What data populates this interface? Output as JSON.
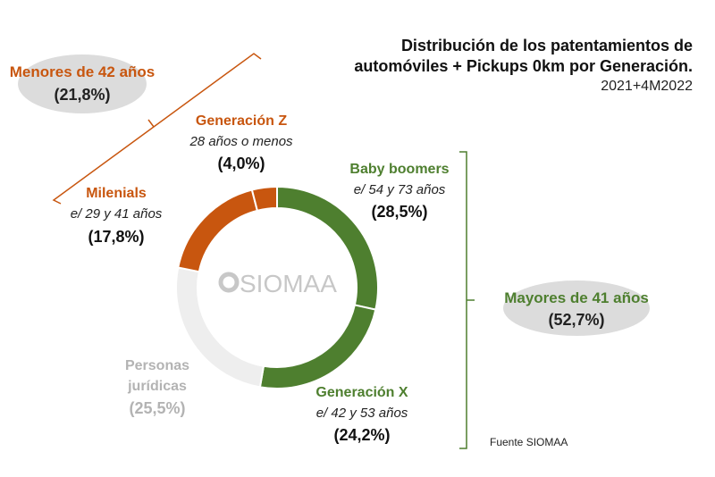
{
  "chart_data": {
    "type": "pie",
    "variant": "donut",
    "title": "Distribución de los patentamientos de automóviles + Pickups 0km por Generación.",
    "subtitle": "2021+4M2022",
    "slices": [
      {
        "name": "Baby boomers",
        "range": "e/ 54 y 73 años",
        "value": 28.5,
        "label": "(28,5%)",
        "color": "#4e7f2f"
      },
      {
        "name": "Generación X",
        "range": "e/ 42 y 53 años",
        "value": 24.2,
        "label": "(24,2%)",
        "color": "#4e7f2f"
      },
      {
        "name": "Personas jurídicas",
        "name_lines": [
          "Personas",
          "jurídicas"
        ],
        "value": 25.5,
        "label": "(25,5%)",
        "color": "#eeeeee"
      },
      {
        "name": "Milenials",
        "range": "e/ 29 y 41 años",
        "value": 17.8,
        "label": "(17,8%)",
        "color": "#c8560f"
      },
      {
        "name": "Generación Z",
        "range": "28 años o menos",
        "value": 4.0,
        "label": "(4,0%)",
        "color": "#c8560f"
      }
    ],
    "groups": [
      {
        "name": "Menores de 42 años",
        "label": "(21,8%)",
        "color": "#c8560f"
      },
      {
        "name": "Mayores de 41 años",
        "label": "(52,7%)",
        "color": "#4e7f2f"
      }
    ],
    "source": "Fuente SIOMAA",
    "watermark": "SIOMAA"
  },
  "colors": {
    "orange": "#c8560f",
    "green": "#4e7f2f",
    "gray_text": "#b3b3b3",
    "oval": "#d9d9d9"
  }
}
